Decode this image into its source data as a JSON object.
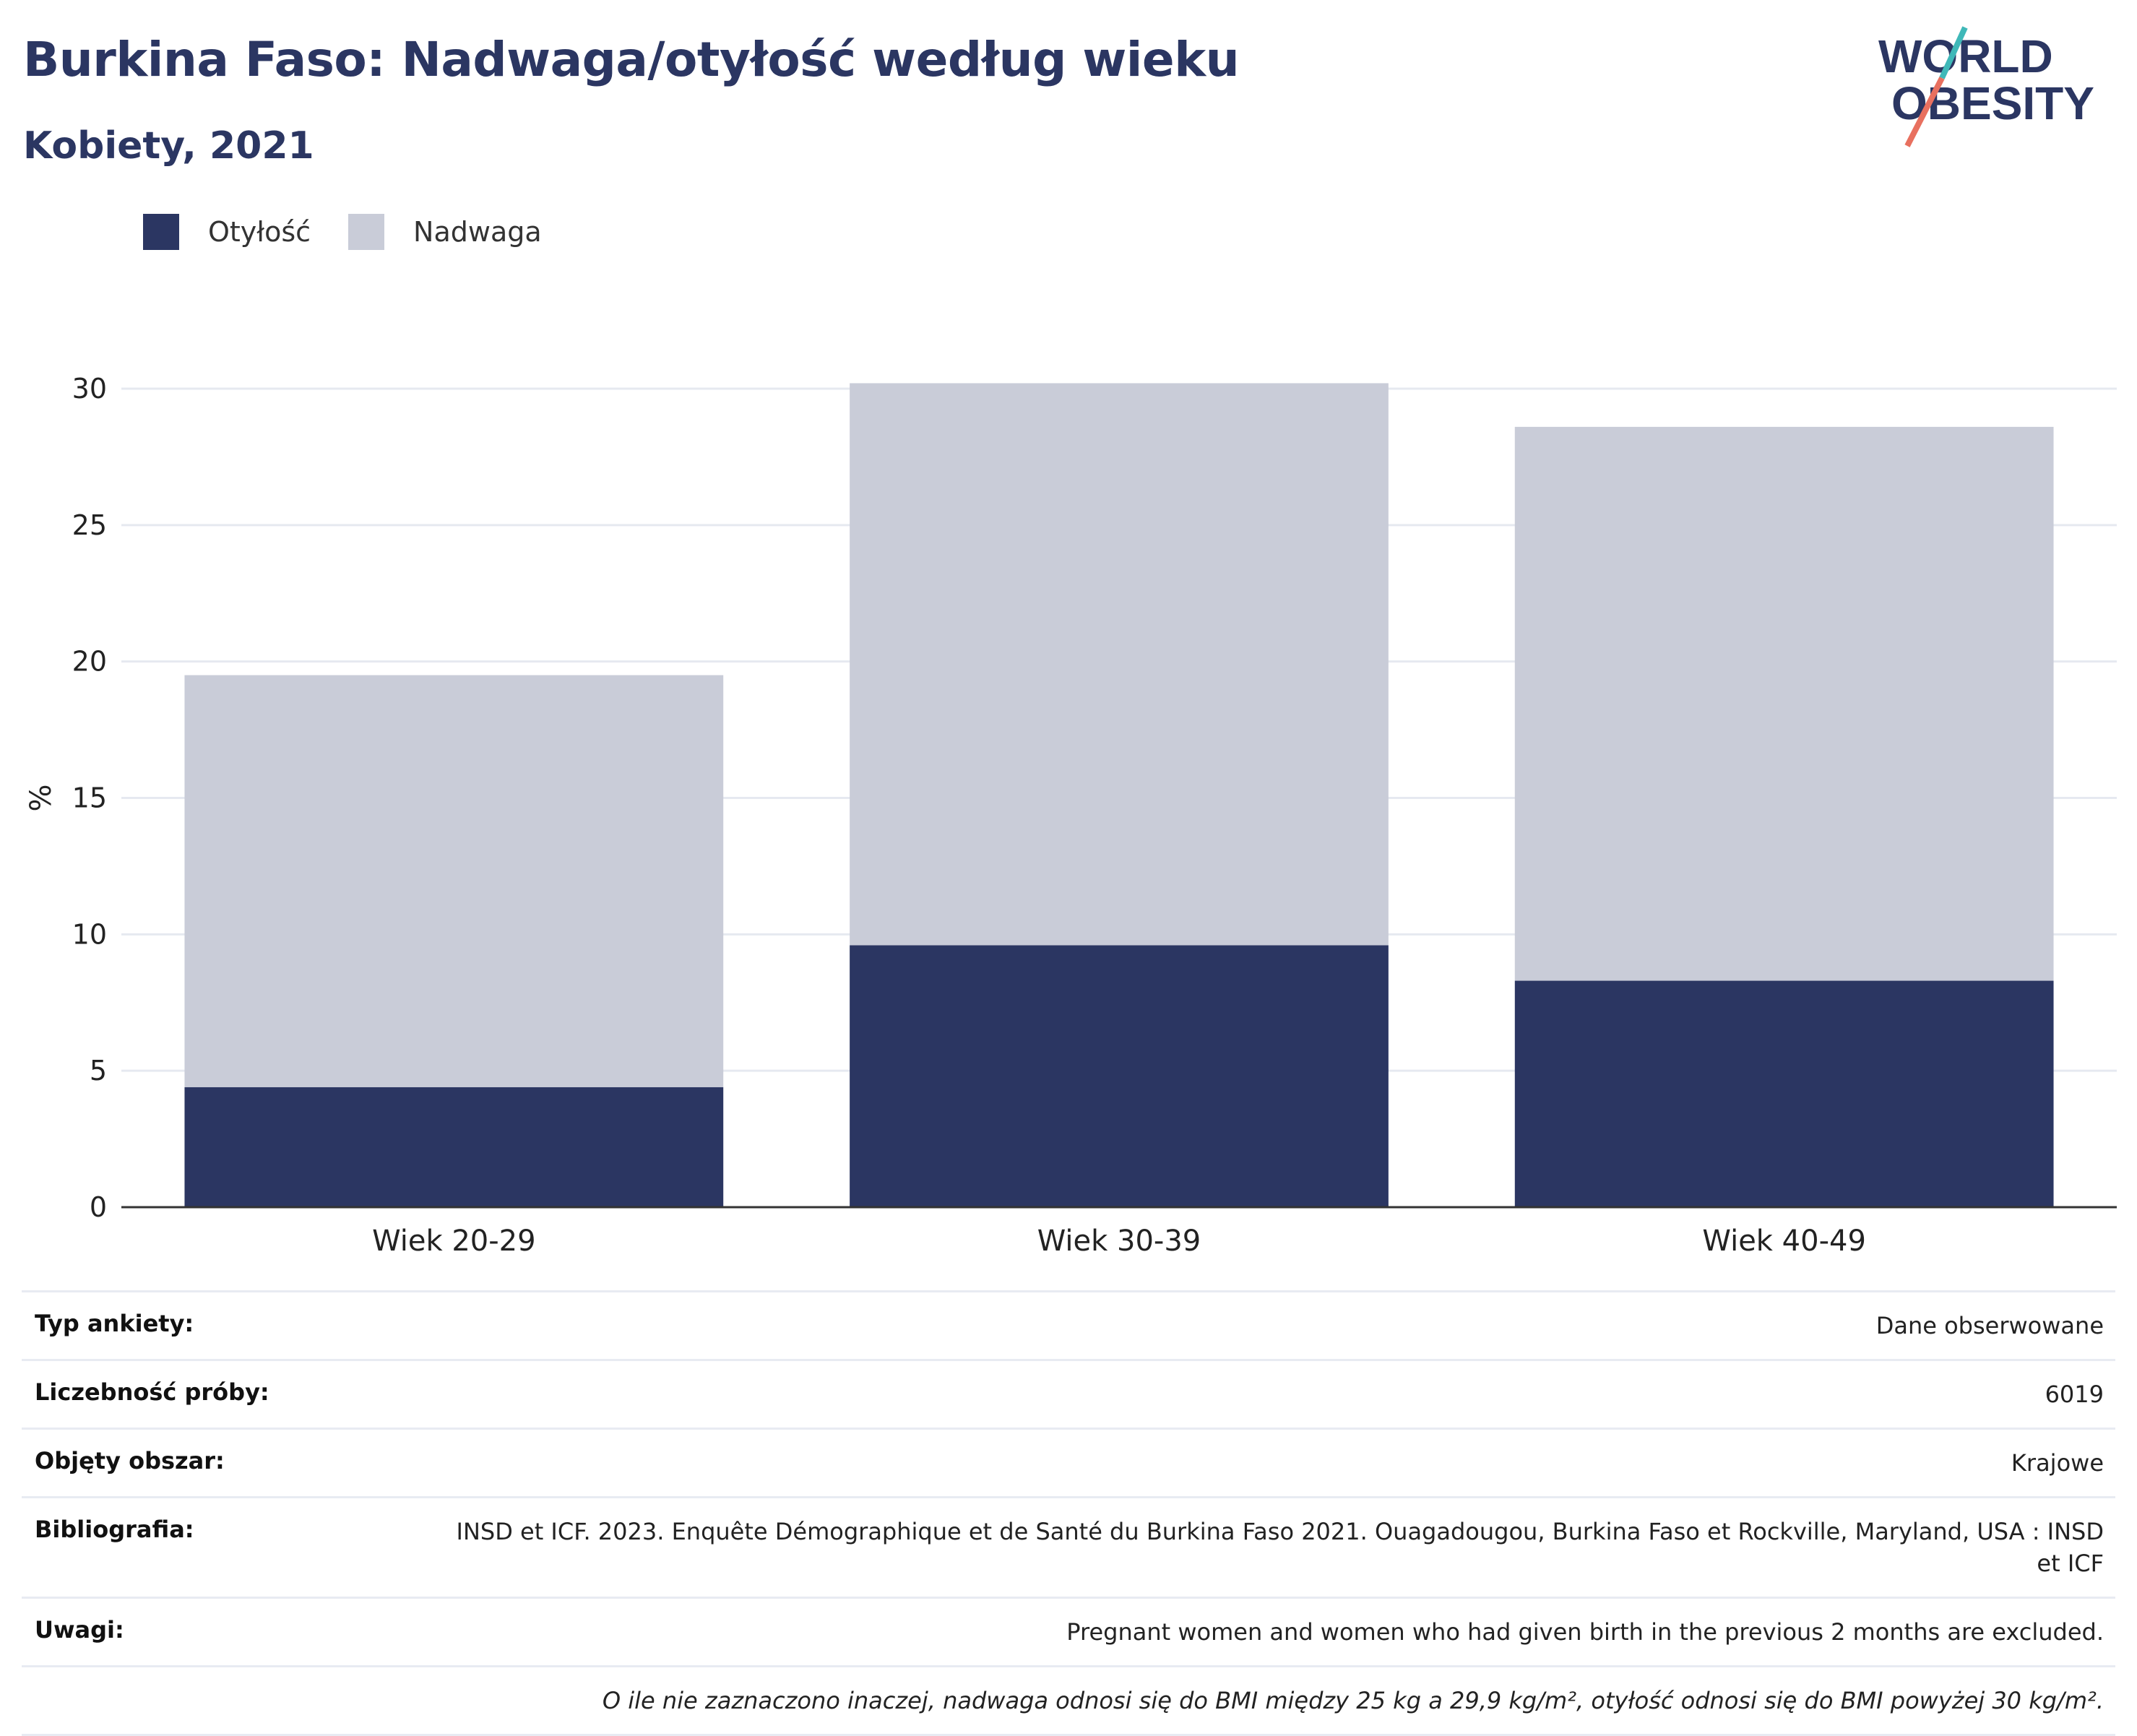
{
  "title": "Burkina Faso: Nadwaga/otyłość według wieku",
  "subtitle": "Kobiety, 2021",
  "logo": {
    "line1": "WORLD",
    "line2": "OBESITY"
  },
  "legend": [
    {
      "label": "Otyłość",
      "color": "#2b3662"
    },
    {
      "label": "Nadwaga",
      "color": "#c9ccd8"
    }
  ],
  "chart_data": {
    "type": "bar",
    "stacked": true,
    "categories": [
      "Wiek 20-29",
      "Wiek 30-39",
      "Wiek 40-49"
    ],
    "series": [
      {
        "name": "Otyłość",
        "color": "#2b3662",
        "values": [
          4.4,
          9.6,
          8.3
        ]
      },
      {
        "name": "Nadwaga",
        "color": "#c9ccd8",
        "values": [
          15.1,
          20.6,
          20.3
        ]
      }
    ],
    "ylabel": "%",
    "ylim": [
      0,
      30
    ],
    "yticks": [
      0,
      5,
      10,
      15,
      20,
      25,
      30
    ],
    "grid": true,
    "legend_position": "top-left"
  },
  "info": [
    {
      "key": "Typ ankiety:",
      "value": "Dane obserwowane"
    },
    {
      "key": "Liczebność próby:",
      "value": "6019"
    },
    {
      "key": "Objęty obszar:",
      "value": "Krajowe"
    },
    {
      "key": "Bibliografia:",
      "value": "INSD et ICF. 2023. Enquête Démographique et de Santé du Burkina Faso 2021. Ouagadougou, Burkina Faso et Rockville, Maryland, USA : INSD et ICF"
    },
    {
      "key": "Uwagi:",
      "value": "Pregnant women and women who had given birth in the previous 2 months are excluded."
    },
    {
      "key": "",
      "value": "O ile nie zaznaczono inaczej, nadwaga odnosi się do BMI między 25 kg a 29,9 kg/m², otyłość odnosi się do BMI powyżej 30 kg/m²."
    }
  ]
}
